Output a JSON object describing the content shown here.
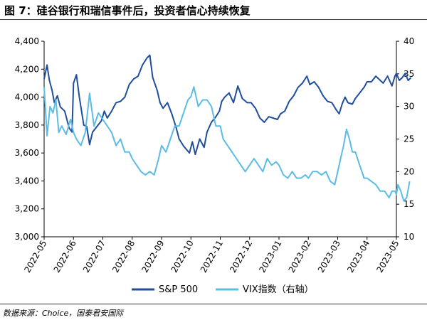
{
  "figure": {
    "title": "图 7：硅谷银行和瑞信事件后，投资者信心持续恢复",
    "source": "数据来源：Choice，国泰君安国际"
  },
  "chart_data": {
    "type": "line",
    "x_tick_labels": [
      "2022-05",
      "2022-06",
      "2022-07",
      "2022-08",
      "2022-09",
      "2022-10",
      "2022-11",
      "2022-12",
      "2023-01",
      "2023-02",
      "2023-03",
      "2023-04",
      "2023-05"
    ],
    "y_left": {
      "range": [
        3000,
        4400
      ],
      "ticks": [
        "3,000",
        "3,200",
        "3,400",
        "3,600",
        "3,800",
        "4,000",
        "4,200",
        "4,400"
      ]
    },
    "y_right": {
      "range": [
        10,
        40
      ],
      "ticks": [
        "10",
        "15",
        "20",
        "25",
        "30",
        "35",
        "40"
      ]
    },
    "grid": false,
    "legend_position": "bottom",
    "series": [
      {
        "name": "S&P 500",
        "axis": "left",
        "color": "#1f4e9c",
        "points": [
          [
            0.0,
            4130
          ],
          [
            0.1,
            4230
          ],
          [
            0.18,
            4120
          ],
          [
            0.27,
            4050
          ],
          [
            0.35,
            3960
          ],
          [
            0.45,
            4010
          ],
          [
            0.55,
            3930
          ],
          [
            0.7,
            3900
          ],
          [
            0.85,
            3780
          ],
          [
            0.95,
            3750
          ],
          [
            1.0,
            4100
          ],
          [
            1.1,
            4160
          ],
          [
            1.2,
            4000
          ],
          [
            1.35,
            3800
          ],
          [
            1.45,
            3790
          ],
          [
            1.55,
            3660
          ],
          [
            1.65,
            3750
          ],
          [
            1.8,
            3790
          ],
          [
            1.95,
            3830
          ],
          [
            2.05,
            3900
          ],
          [
            2.15,
            3850
          ],
          [
            2.3,
            3900
          ],
          [
            2.45,
            3960
          ],
          [
            2.6,
            3970
          ],
          [
            2.75,
            4000
          ],
          [
            2.9,
            4090
          ],
          [
            3.05,
            4130
          ],
          [
            3.2,
            4150
          ],
          [
            3.35,
            4230
          ],
          [
            3.5,
            4280
          ],
          [
            3.6,
            4300
          ],
          [
            3.7,
            4140
          ],
          [
            3.85,
            4050
          ],
          [
            3.95,
            3960
          ],
          [
            4.05,
            3920
          ],
          [
            4.2,
            3960
          ],
          [
            4.35,
            3880
          ],
          [
            4.5,
            3780
          ],
          [
            4.6,
            3700
          ],
          [
            4.75,
            3650
          ],
          [
            4.95,
            3600
          ],
          [
            5.05,
            3680
          ],
          [
            5.15,
            3590
          ],
          [
            5.3,
            3700
          ],
          [
            5.45,
            3640
          ],
          [
            5.55,
            3750
          ],
          [
            5.7,
            3820
          ],
          [
            5.85,
            3860
          ],
          [
            5.97,
            3900
          ],
          [
            6.05,
            3970
          ],
          [
            6.15,
            4000
          ],
          [
            6.3,
            4030
          ],
          [
            6.45,
            3960
          ],
          [
            6.6,
            4080
          ],
          [
            6.75,
            3990
          ],
          [
            6.92,
            3960
          ],
          [
            7.05,
            3960
          ],
          [
            7.2,
            3920
          ],
          [
            7.35,
            3850
          ],
          [
            7.5,
            3820
          ],
          [
            7.65,
            3860
          ],
          [
            7.8,
            3850
          ],
          [
            7.95,
            3840
          ],
          [
            8.05,
            3880
          ],
          [
            8.2,
            3900
          ],
          [
            8.35,
            3970
          ],
          [
            8.5,
            4010
          ],
          [
            8.65,
            4070
          ],
          [
            8.8,
            4100
          ],
          [
            8.95,
            4150
          ],
          [
            9.05,
            4090
          ],
          [
            9.2,
            4110
          ],
          [
            9.35,
            4070
          ],
          [
            9.5,
            4010
          ],
          [
            9.65,
            3970
          ],
          [
            9.8,
            3960
          ],
          [
            9.95,
            3910
          ],
          [
            10.05,
            3880
          ],
          [
            10.15,
            3950
          ],
          [
            10.25,
            4000
          ],
          [
            10.35,
            3960
          ],
          [
            10.5,
            3950
          ],
          [
            10.6,
            3990
          ],
          [
            10.75,
            4030
          ],
          [
            10.9,
            4070
          ],
          [
            11.0,
            4110
          ],
          [
            11.15,
            4110
          ],
          [
            11.3,
            4150
          ],
          [
            11.45,
            4120
          ],
          [
            11.55,
            4100
          ],
          [
            11.7,
            4150
          ],
          [
            11.85,
            4080
          ],
          [
            11.95,
            4150
          ],
          [
            12.0,
            4170
          ],
          [
            12.1,
            4120
          ],
          [
            12.2,
            4140
          ],
          [
            12.3,
            4170
          ],
          [
            12.4,
            4120
          ],
          [
            12.5,
            4140
          ]
        ]
      },
      {
        "name": "VIX指数（右轴）",
        "axis": "right",
        "color": "#5bbce4",
        "points": [
          [
            0.0,
            33
          ],
          [
            0.1,
            25.5
          ],
          [
            0.2,
            30
          ],
          [
            0.3,
            29
          ],
          [
            0.4,
            31
          ],
          [
            0.5,
            26
          ],
          [
            0.6,
            27
          ],
          [
            0.75,
            25.7
          ],
          [
            0.9,
            28
          ],
          [
            1.0,
            26
          ],
          [
            1.1,
            25
          ],
          [
            1.25,
            24
          ],
          [
            1.4,
            26
          ],
          [
            1.55,
            32
          ],
          [
            1.7,
            27
          ],
          [
            1.85,
            29
          ],
          [
            2.0,
            28
          ],
          [
            2.15,
            27
          ],
          [
            2.3,
            26
          ],
          [
            2.45,
            24
          ],
          [
            2.6,
            25
          ],
          [
            2.75,
            23
          ],
          [
            2.9,
            23
          ],
          [
            3.0,
            22
          ],
          [
            3.15,
            21
          ],
          [
            3.3,
            20
          ],
          [
            3.45,
            19.5
          ],
          [
            3.6,
            20
          ],
          [
            3.75,
            19.5
          ],
          [
            3.9,
            22
          ],
          [
            4.0,
            24
          ],
          [
            4.15,
            23
          ],
          [
            4.3,
            25
          ],
          [
            4.45,
            27
          ],
          [
            4.6,
            27
          ],
          [
            4.75,
            29
          ],
          [
            4.9,
            31
          ],
          [
            5.0,
            31.5
          ],
          [
            5.1,
            33
          ],
          [
            5.25,
            30
          ],
          [
            5.4,
            31
          ],
          [
            5.55,
            31
          ],
          [
            5.7,
            30
          ],
          [
            5.85,
            27
          ],
          [
            6.0,
            27
          ],
          [
            6.1,
            25
          ],
          [
            6.25,
            24
          ],
          [
            6.4,
            23
          ],
          [
            6.55,
            22
          ],
          [
            6.7,
            21
          ],
          [
            6.85,
            20
          ],
          [
            7.0,
            21
          ],
          [
            7.15,
            22
          ],
          [
            7.3,
            21
          ],
          [
            7.45,
            20
          ],
          [
            7.6,
            22
          ],
          [
            7.75,
            21
          ],
          [
            7.9,
            21.5
          ],
          [
            8.0,
            21
          ],
          [
            8.15,
            19.5
          ],
          [
            8.3,
            19
          ],
          [
            8.45,
            20
          ],
          [
            8.6,
            19
          ],
          [
            8.75,
            19
          ],
          [
            8.9,
            19.5
          ],
          [
            9.0,
            19
          ],
          [
            9.15,
            20
          ],
          [
            9.3,
            20
          ],
          [
            9.45,
            19.5
          ],
          [
            9.6,
            20
          ],
          [
            9.75,
            18.5
          ],
          [
            9.9,
            18
          ],
          [
            10.0,
            20
          ],
          [
            10.1,
            22
          ],
          [
            10.2,
            24
          ],
          [
            10.3,
            26.5
          ],
          [
            10.4,
            25
          ],
          [
            10.5,
            23
          ],
          [
            10.6,
            23
          ],
          [
            10.75,
            21
          ],
          [
            10.9,
            19
          ],
          [
            11.0,
            19
          ],
          [
            11.15,
            18.5
          ],
          [
            11.3,
            18
          ],
          [
            11.45,
            17
          ],
          [
            11.6,
            17
          ],
          [
            11.75,
            16
          ],
          [
            11.85,
            17
          ],
          [
            11.95,
            17
          ],
          [
            12.0,
            16.5
          ],
          [
            12.05,
            18
          ],
          [
            12.15,
            17
          ],
          [
            12.25,
            15.5
          ],
          [
            12.35,
            16
          ],
          [
            12.45,
            18.5
          ]
        ]
      }
    ],
    "legend": [
      {
        "label": "S&P 500",
        "color": "#1f4e9c"
      },
      {
        "label": "VIX指数（右轴）",
        "color": "#5bbce4"
      }
    ]
  }
}
